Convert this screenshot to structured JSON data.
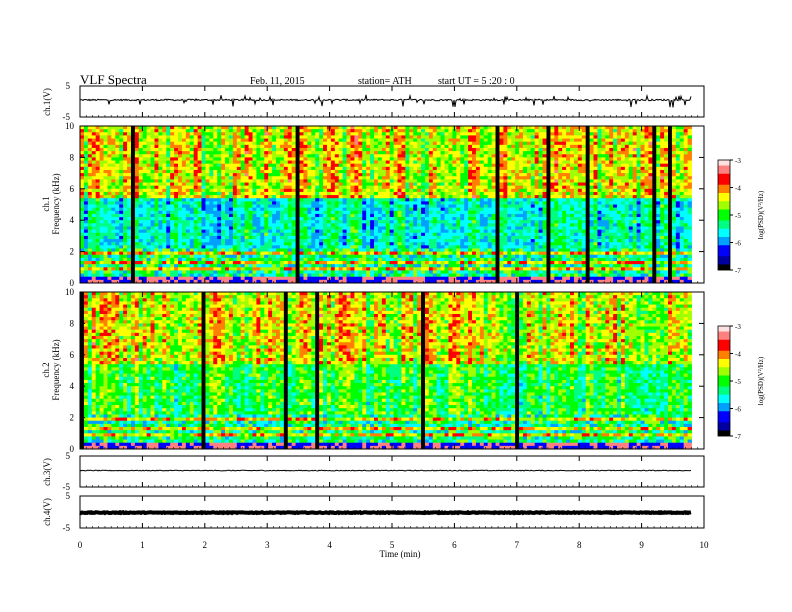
{
  "header": {
    "title": "VLF  Spectra",
    "date": "Feb. 11, 2015",
    "station": "station= ATH",
    "start": "start  UT  =   5  :20 : 0"
  },
  "chart_data": [
    {
      "type": "line",
      "ylabel": "ch.1(V)",
      "ylim": [
        -5,
        5
      ],
      "yticks": [
        "5",
        "-5"
      ],
      "xlim": [
        0,
        10
      ],
      "description_of_signal": "noisy trace near 0 V with frequent spikes",
      "baseline_v": 0.5
    },
    {
      "type": "heatmap",
      "ylabel_line1": "ch.1",
      "ylabel_line2": "Frequency  (kHz)",
      "ylim": [
        0,
        10
      ],
      "yticks": [
        "0",
        "2",
        "4",
        "6",
        "8",
        "10"
      ],
      "colorbar": {
        "label": "log(PSD)(V²/Hz)",
        "range": [
          -7,
          -3
        ],
        "ticks": [
          "-3",
          "-4",
          "-5",
          "-6",
          "-7"
        ]
      }
    },
    {
      "type": "heatmap",
      "ylabel_line1": "ch.2",
      "ylabel_line2": "Frequency  (kHz)",
      "ylim": [
        0,
        10
      ],
      "yticks": [
        "0",
        "2",
        "4",
        "6",
        "8",
        "10"
      ],
      "colorbar": {
        "label": "log(PSD)(V²/Hz)",
        "range": [
          -7,
          -3
        ],
        "ticks": [
          "-3",
          "-4",
          "-5",
          "-6",
          "-7"
        ]
      }
    },
    {
      "type": "line",
      "ylabel": "ch.3(V)",
      "ylim": [
        -5,
        5
      ],
      "yticks": [
        "5",
        "-5"
      ],
      "baseline_v": 0.3
    },
    {
      "type": "line",
      "ylabel": "ch.4(V)",
      "ylim": [
        -5,
        5
      ],
      "yticks": [
        "5",
        "-5"
      ],
      "baseline_v": -0.2
    }
  ],
  "xaxis": {
    "label": "Time  (min)",
    "ticks": [
      "0",
      "1",
      "2",
      "3",
      "4",
      "5",
      "6",
      "7",
      "8",
      "9",
      "10"
    ],
    "xlim": [
      0,
      10
    ],
    "data_end_min": 9.8
  },
  "colors": {
    "colormap": [
      "#000000",
      "#0000a0",
      "#0000ff",
      "#00a0ff",
      "#00ffff",
      "#00ff80",
      "#00ff00",
      "#a0ff00",
      "#ffff00",
      "#ff8000",
      "#ff0000",
      "#ff8080",
      "#ffe0e0"
    ]
  }
}
